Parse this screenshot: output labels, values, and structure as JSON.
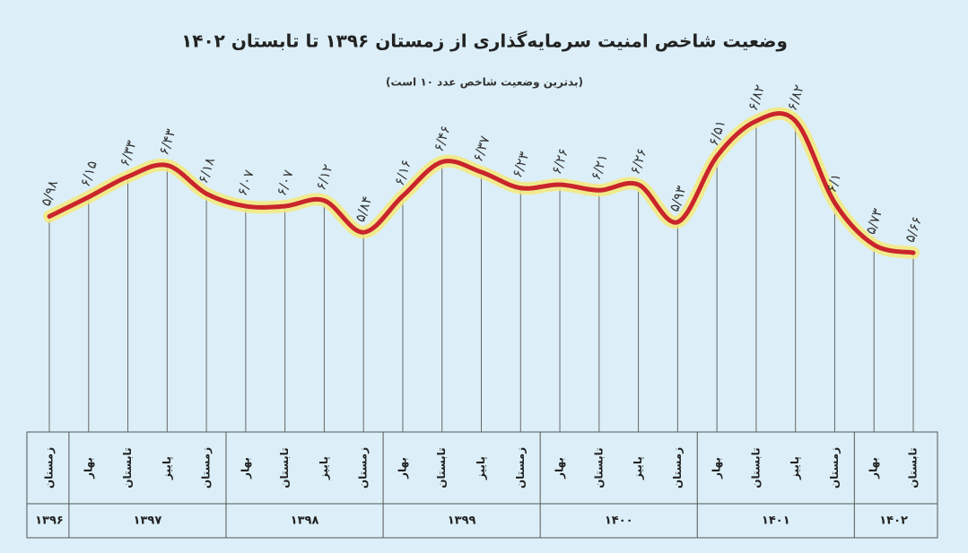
{
  "chart_data": {
    "type": "line",
    "title": "وضعیت شاخص امنیت سرمایه‌گذاری از زمستان ۱۳۹۶ تا تابستان ۱۴۰۲",
    "subtitle": "(بدترین وضعیت شاخص عدد ۱۰ است)",
    "categories": [
      "زمستان",
      "بهار",
      "تابستان",
      "پاییز",
      "زمستان",
      "بهار",
      "تابستان",
      "پاییز",
      "زمستان",
      "بهار",
      "تابستان",
      "پاییز",
      "زمستان",
      "بهار",
      "تابستان",
      "پاییز",
      "زمستان",
      "بهار",
      "تابستان",
      "پاییز",
      "زمستان",
      "بهار",
      "تابستان"
    ],
    "x_groups": [
      {
        "label": "۱۳۹۶",
        "size": 1
      },
      {
        "label": "۱۳۹۷",
        "size": 4
      },
      {
        "label": "۱۳۹۸",
        "size": 4
      },
      {
        "label": "۱۳۹۹",
        "size": 4
      },
      {
        "label": "۱۴۰۰",
        "size": 4
      },
      {
        "label": "۱۴۰۱",
        "size": 4
      },
      {
        "label": "۱۴۰۲",
        "size": 2
      }
    ],
    "values": [
      5.98,
      6.15,
      6.33,
      6.43,
      6.18,
      6.07,
      6.07,
      6.12,
      5.84,
      6.16,
      6.46,
      6.37,
      6.23,
      6.26,
      6.21,
      6.26,
      5.93,
      6.51,
      6.82,
      6.82,
      6.1,
      5.73,
      5.66
    ],
    "value_labels": [
      "۵/۹۸",
      "۶/۱۵",
      "۶/۳۳",
      "۶/۴۳",
      "۶/۱۸",
      "۶/۰۷",
      "۶/۰۷",
      "۶/۱۲",
      "۵/۸۴",
      "۶/۱۶",
      "۶/۴۶",
      "۶/۳۷",
      "۶/۲۳",
      "۶/۲۶",
      "۶/۲۱",
      "۶/۲۶",
      "۵/۹۳",
      "۶/۵۱",
      "۶/۸۲",
      "۶/۸۲",
      "۶/۱",
      "۵/۷۳",
      "۵/۶۶"
    ],
    "color": "#c9252b",
    "glow_color": "#f4e97a"
  }
}
